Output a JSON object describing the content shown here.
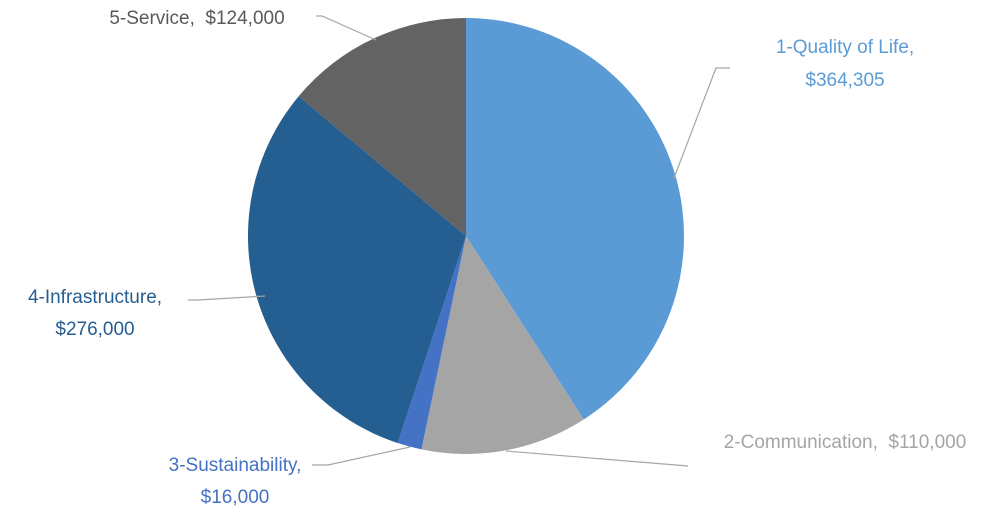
{
  "chart_data": {
    "type": "pie",
    "title": "",
    "categories": [
      "1-Quality of Life",
      "2-Communication",
      "3-Sustainability",
      "4-Infrastructure",
      "5-Service"
    ],
    "values": [
      364305,
      110000,
      16000,
      276000,
      124000
    ],
    "data_labels": [
      [
        "1-Quality of Life,",
        "$364,305"
      ],
      [
        "2-Communication,  $110,000"
      ],
      [
        "3-Sustainability,",
        "$16,000"
      ],
      [
        "4-Infrastructure,",
        "$276,000"
      ],
      [
        "5-Service,  $124,000"
      ]
    ],
    "colors": [
      "#5b9bd5",
      "#a5a5a5",
      "#4472c4",
      "#255e91",
      "#636363"
    ],
    "label_colors": [
      "#5b9bd5",
      "#a5a5a5",
      "#4472c4",
      "#255e91",
      "#595959"
    ],
    "leader_color": "#a6a6a6",
    "start_angle_deg": 0,
    "direction": "clockwise",
    "legend": "none"
  }
}
